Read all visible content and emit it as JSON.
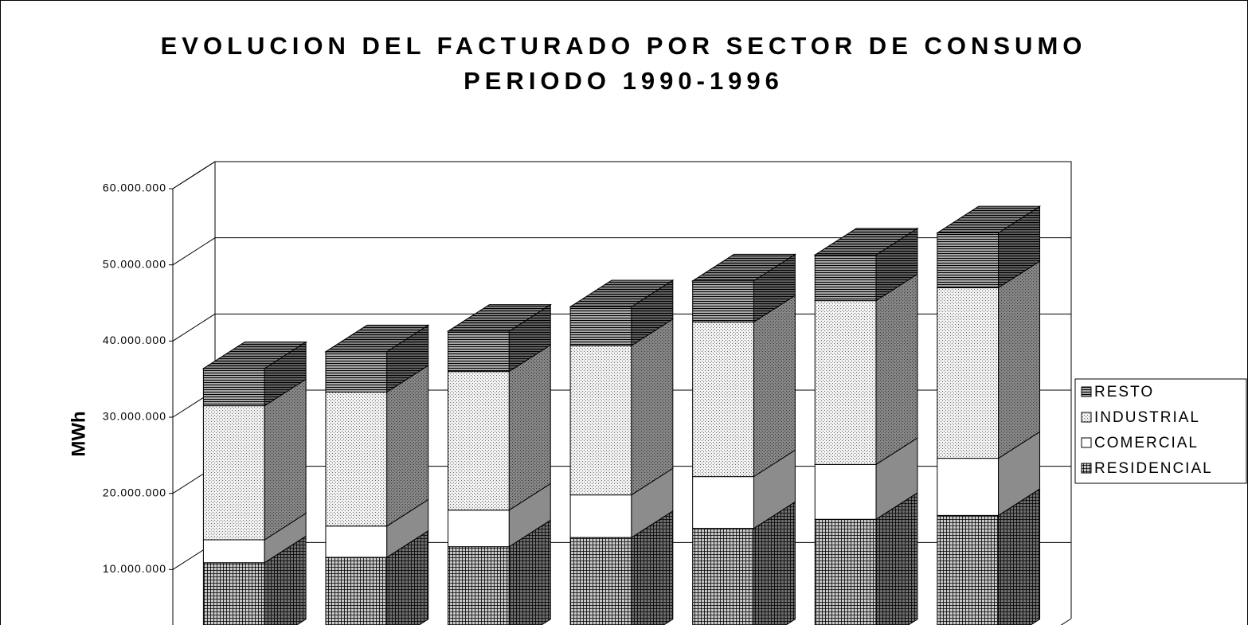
{
  "chart_data": {
    "type": "bar3d_stacked",
    "title": "EVOLUCION DEL FACTURADO POR SECTOR DE CONSUMO",
    "subtitle": "PERIODO 1990-1996",
    "y_label": "MWh",
    "categories": [
      null,
      null,
      null,
      null,
      null,
      null,
      null
    ],
    "series": [
      {
        "name": "RESIDENCIAL",
        "color": "#c8c8c8",
        "values": [
          10900000,
          11600000,
          13000000,
          14200000,
          15400000,
          16600000,
          17100000
        ]
      },
      {
        "name": "COMERCIAL",
        "color": "#ffffff",
        "values": [
          3000000,
          4100000,
          4800000,
          5600000,
          6800000,
          7200000,
          7500000
        ]
      },
      {
        "name": "INDUSTRIAL",
        "color": "#f2f2f2",
        "values": [
          17600000,
          17600000,
          18200000,
          19600000,
          20300000,
          21500000,
          22400000
        ]
      },
      {
        "name": "RESTO",
        "color": "#a8a8a8",
        "values": [
          4900000,
          5300000,
          5300000,
          5100000,
          5400000,
          6000000,
          7200000
        ]
      }
    ],
    "ylim": [
      0,
      60000000
    ],
    "yticks": [
      {
        "value": 10000000,
        "label": "10.000.000"
      },
      {
        "value": 20000000,
        "label": "20.000.000"
      },
      {
        "value": 30000000,
        "label": "30.000.000"
      },
      {
        "value": 40000000,
        "label": "40.000.000"
      },
      {
        "value": 50000000,
        "label": "50.000.000"
      },
      {
        "value": 60000000,
        "label": "60.000.000"
      }
    ],
    "grid": true,
    "legend": "right"
  }
}
